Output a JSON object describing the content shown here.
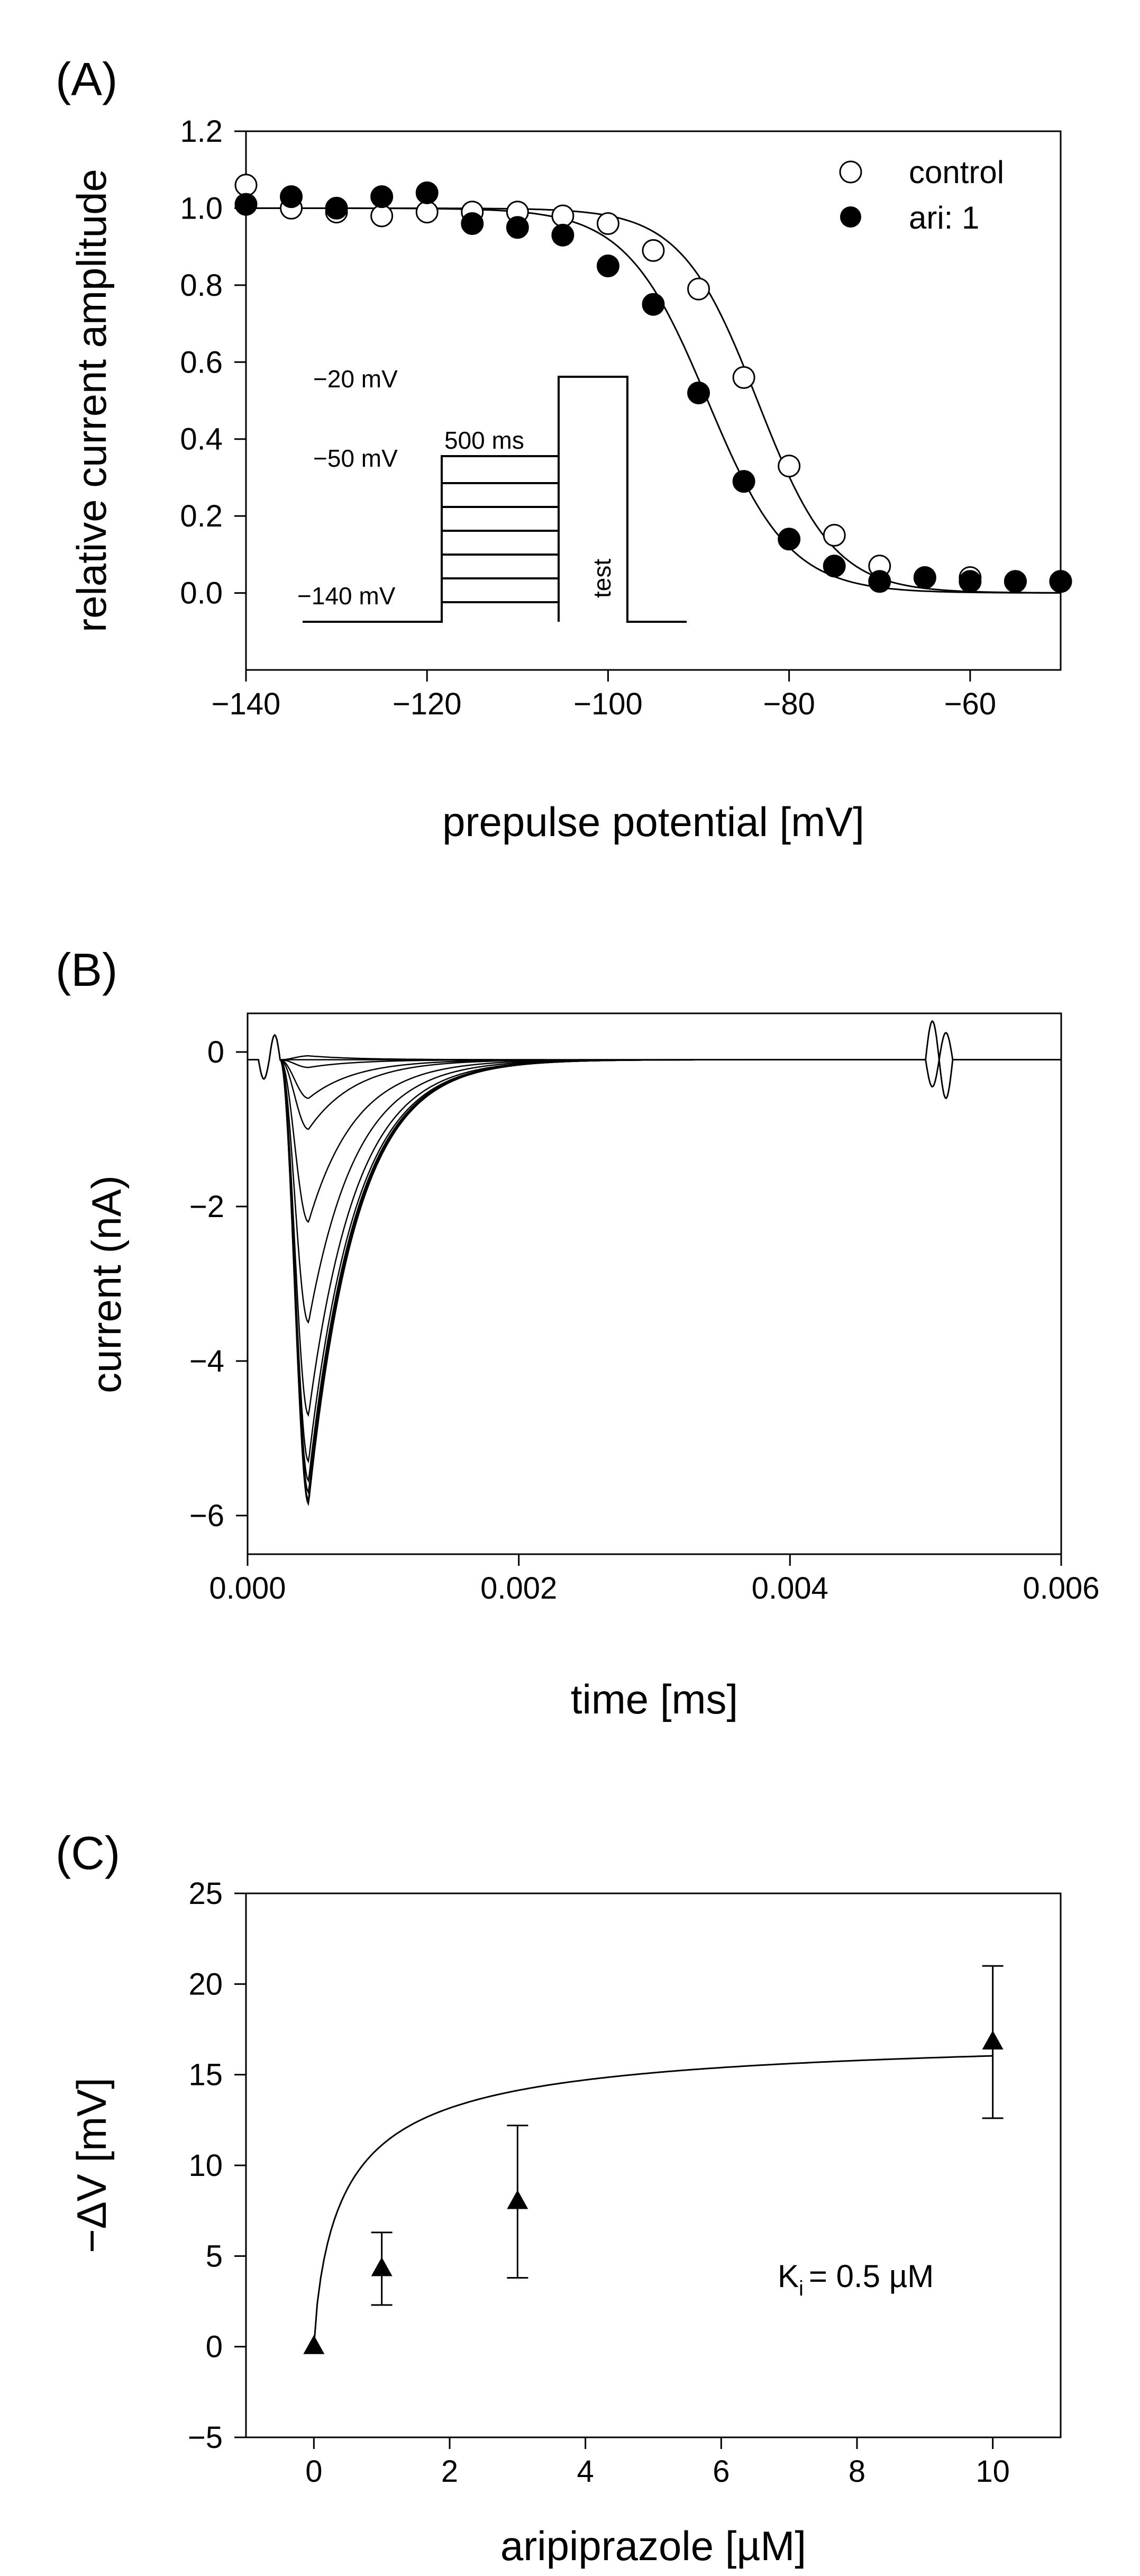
{
  "chart_data": [
    {
      "panel": "(A)",
      "type": "scatter",
      "xlabel": "prepulse potential [mV]",
      "ylabel": "relative current amplitude",
      "xlim": [
        -140,
        -50
      ],
      "ylim": [
        -0.2,
        1.2
      ],
      "xticks": [
        -140,
        -120,
        -100,
        -80,
        -60
      ],
      "xtick_labels": [
        "−140",
        "−120",
        "−100",
        "−80",
        "−60"
      ],
      "yticks": [
        0.0,
        0.2,
        0.4,
        0.6,
        0.8,
        1.0,
        1.2
      ],
      "ytick_labels": [
        "0.0",
        "0.2",
        "0.4",
        "0.6",
        "0.8",
        "1.0",
        "1.2"
      ],
      "legend_position": "top-right",
      "series": [
        {
          "name": "control",
          "marker": "open-circle",
          "x": [
            -140,
            -135,
            -130,
            -125,
            -120,
            -115,
            -110,
            -105,
            -100,
            -95,
            -90,
            -85,
            -80,
            -75,
            -70,
            -65,
            -60,
            -55,
            -50
          ],
          "y": [
            1.06,
            1.0,
            0.99,
            0.98,
            0.99,
            0.99,
            0.99,
            0.98,
            0.96,
            0.89,
            0.79,
            0.56,
            0.33,
            0.15,
            0.07,
            0.04,
            0.04,
            0.03,
            0.03
          ],
          "fit": {
            "v_half": -83.5,
            "k": 4.2
          }
        },
        {
          "name": "ari: 1",
          "marker": "filled-circle",
          "x": [
            -140,
            -135,
            -130,
            -125,
            -120,
            -115,
            -110,
            -105,
            -100,
            -95,
            -90,
            -85,
            -80,
            -75,
            -70,
            -65,
            -60,
            -55,
            -50
          ],
          "y": [
            1.01,
            1.03,
            1.0,
            1.03,
            1.04,
            0.96,
            0.95,
            0.93,
            0.85,
            0.75,
            0.52,
            0.29,
            0.14,
            0.07,
            0.03,
            0.04,
            0.03,
            0.03,
            0.03
          ],
          "fit": {
            "v_half": -89.0,
            "k": 4.5
          }
        }
      ],
      "inset": {
        "protocol_labels": [
          "−20 mV",
          "−50 mV",
          "−140 mV",
          "500 ms",
          "test"
        ]
      }
    },
    {
      "panel": "(B)",
      "type": "line",
      "xlabel": "time [ms]",
      "ylabel": "current (nA)",
      "xlim": [
        0.0,
        0.006
      ],
      "ylim": [
        -6.5,
        0.5
      ],
      "xticks": [
        0.0,
        0.002,
        0.004,
        0.006
      ],
      "xtick_labels": [
        "0.000",
        "0.002",
        "0.004",
        "0.006"
      ],
      "yticks": [
        -6,
        -4,
        -2,
        0
      ],
      "ytick_labels": [
        "−6",
        "−4",
        "−2",
        "0"
      ],
      "trace_peak_time": 0.00045,
      "trace_peaks_nA": [
        -0.05,
        -0.1,
        -0.2,
        -0.6,
        -1.0,
        -2.2,
        -3.5,
        -4.7,
        -5.3,
        -5.55,
        -5.7,
        -5.8,
        -5.85
      ],
      "trace_recovery_tau": 0.00035,
      "baseline_nA": -0.1
    },
    {
      "panel": "(C)",
      "type": "scatter",
      "xlabel": "aripiprazole [µM]",
      "ylabel": "−ΔV [mV]",
      "xlim": [
        -1,
        11
      ],
      "ylim": [
        -5,
        25
      ],
      "xticks": [
        0,
        2,
        4,
        6,
        8,
        10
      ],
      "xtick_labels": [
        "0",
        "2",
        "4",
        "6",
        "8",
        "10"
      ],
      "yticks": [
        -5,
        0,
        5,
        10,
        15,
        20,
        25
      ],
      "ytick_labels": [
        "−5",
        "0",
        "5",
        "10",
        "15",
        "20",
        "25"
      ],
      "series": [
        {
          "name": "−ΔV",
          "marker": "filled-triangle",
          "x": [
            0,
            1,
            3,
            10
          ],
          "y": [
            0,
            4.3,
            8.0,
            16.8
          ],
          "err": [
            0,
            2.0,
            4.2,
            4.2
          ]
        }
      ],
      "fit": {
        "vmax": 17.5,
        "ki": 0.5,
        "hill": 0.8
      },
      "annotation": {
        "prefix": "K",
        "subscript": "i",
        "suffix": "= 0.5 µM"
      }
    }
  ]
}
